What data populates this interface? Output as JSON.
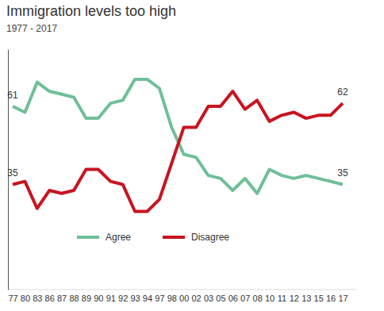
{
  "chart_data": {
    "type": "line",
    "title": "Immigration levels too high",
    "subtitle": "1977 - 2017",
    "categories": [
      "77",
      "80",
      "83",
      "86",
      "87",
      "88",
      "89",
      "90",
      "91",
      "92",
      "93",
      "94",
      "97",
      "98",
      "00",
      "02",
      "03",
      "05",
      "06",
      "07",
      "08",
      "10",
      "11",
      "12",
      "13",
      "15",
      "16",
      "17"
    ],
    "series": [
      {
        "name": "Agree",
        "color": "#6fbf98",
        "values": [
          61,
          59,
          69,
          66,
          65,
          64,
          57,
          57,
          62,
          63,
          70,
          70,
          67,
          54,
          45,
          44,
          38,
          37,
          33,
          37,
          32,
          40,
          38,
          37,
          38,
          37,
          36,
          35
        ],
        "value_labels": [
          "61",
          null,
          null,
          null,
          null,
          null,
          null,
          null,
          null,
          null,
          null,
          null,
          null,
          null,
          null,
          null,
          null,
          null,
          null,
          null,
          null,
          null,
          null,
          null,
          null,
          null,
          null,
          "35"
        ]
      },
      {
        "name": "Disagree",
        "color": "#c8141f",
        "values": [
          35,
          36,
          27,
          33,
          32,
          33,
          40,
          40,
          36,
          35,
          26,
          26,
          30,
          42,
          54,
          54,
          61,
          61,
          66,
          60,
          63,
          56,
          58,
          59,
          57,
          58,
          58,
          62
        ],
        "value_labels": [
          "35",
          null,
          null,
          null,
          null,
          null,
          null,
          null,
          null,
          null,
          null,
          null,
          null,
          null,
          null,
          null,
          null,
          null,
          null,
          null,
          null,
          null,
          null,
          null,
          null,
          null,
          null,
          "62"
        ]
      }
    ],
    "ylim": [
      0,
      80
    ],
    "yticks": [],
    "tick_labels": "x",
    "data_labels": true,
    "legend": "bottom-left",
    "grid": false
  }
}
